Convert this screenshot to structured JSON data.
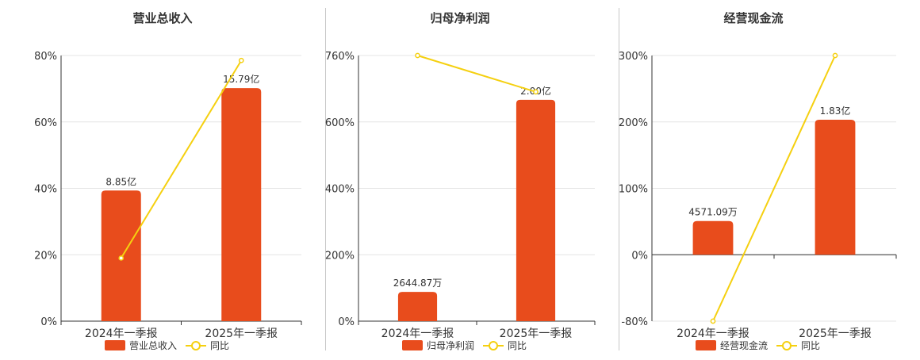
{
  "colors": {
    "bar": "#e84c1c",
    "line": "#f5d010",
    "grid": "#e4e4e4",
    "axis": "#333333",
    "text": "#333333"
  },
  "chart_data": [
    {
      "type": "bar",
      "title": "营业总收入",
      "categories": [
        "2024年一季报",
        "2025年一季报"
      ],
      "series": [
        {
          "name": "营业总收入",
          "type": "bar",
          "values": [
            8.85,
            15.79
          ],
          "labels": [
            "8.85亿",
            "15.79亿"
          ]
        },
        {
          "name": "同比",
          "type": "line",
          "values": [
            19,
            78.5
          ]
        }
      ],
      "yticks": [
        "80%",
        "60%",
        "40%",
        "20%",
        "0%"
      ],
      "ylim": [
        0,
        80
      ],
      "legend": [
        "营业总收入",
        "同比"
      ],
      "legend_position": "bottom"
    },
    {
      "type": "bar",
      "title": "归母净利润",
      "categories": [
        "2024年一季报",
        "2025年一季报"
      ],
      "series": [
        {
          "name": "归母净利润",
          "type": "bar",
          "values": [
            0.2645,
            2.0
          ],
          "labels": [
            "2644.87万",
            "2.00亿"
          ]
        },
        {
          "name": "同比",
          "type": "line",
          "values": [
            760,
            656
          ]
        }
      ],
      "yticks": [
        "760%",
        "600%",
        "400%",
        "200%",
        "0%"
      ],
      "ylim": [
        0,
        760
      ],
      "legend": [
        "归母净利润",
        "同比"
      ],
      "legend_position": "bottom"
    },
    {
      "type": "bar",
      "title": "经营现金流",
      "categories": [
        "2024年一季报",
        "2025年一季报"
      ],
      "series": [
        {
          "name": "经营现金流",
          "type": "bar",
          "values": [
            0.4571,
            1.83
          ],
          "labels": [
            "4571.09万",
            "1.83亿"
          ]
        },
        {
          "name": "同比",
          "type": "line",
          "values": [
            -80,
            300
          ]
        }
      ],
      "yticks": [
        "300%",
        "200%",
        "100%",
        "0%",
        "-80%"
      ],
      "ylim": [
        -80,
        300
      ],
      "legend": [
        "经营现金流",
        "同比"
      ],
      "legend_position": "bottom"
    }
  ]
}
